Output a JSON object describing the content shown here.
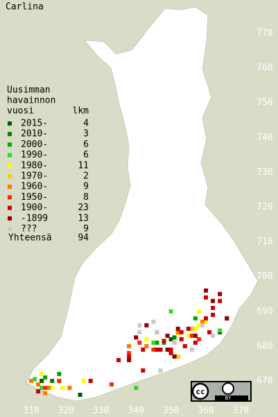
{
  "title": "Carlina",
  "legend": {
    "header": [
      "Uusimman",
      "havainnon",
      "vuosi"
    ],
    "count_header": "lkm",
    "entries": [
      {
        "label": "2015-",
        "count": 4,
        "color": "#005a00",
        "points": [
          [
            313,
            670
          ],
          [
            350,
            682
          ],
          [
            364,
            684
          ],
          [
            324,
            666
          ]
        ]
      },
      {
        "label": "2010-",
        "count": 3,
        "color": "#008000",
        "points": [
          [
            316,
            670
          ],
          [
            351,
            682.5
          ],
          [
            312,
            669
          ]
        ]
      },
      {
        "label": "2000-",
        "count": 6,
        "color": "#00a800",
        "points": [
          [
            314,
            671
          ],
          [
            348,
            681
          ],
          [
            346,
            681
          ],
          [
            319,
            668
          ],
          [
            357,
            688
          ],
          [
            318,
            672
          ]
        ]
      },
      {
        "label": "1990-",
        "count": 6,
        "color": "#22e022",
        "points": [
          [
            340,
            668
          ],
          [
            350,
            690
          ],
          [
            313,
            668
          ],
          [
            311,
            670.5
          ],
          [
            345,
            681
          ],
          [
            364,
            684.5
          ]
        ]
      },
      {
        "label": "1980-",
        "count": 11,
        "color": "#ffff00",
        "points": [
          [
            316,
            668
          ],
          [
            325,
            670
          ],
          [
            313,
            672
          ],
          [
            358,
            686
          ],
          [
            343,
            682
          ],
          [
            360,
            687
          ],
          [
            355,
            683
          ],
          [
            357,
            685
          ],
          [
            319,
            668
          ],
          [
            358,
            690
          ],
          [
            352,
            683.5
          ]
        ]
      },
      {
        "label": "1970-",
        "count": 2,
        "color": "#ffc800",
        "points": [
          [
            356,
            685
          ],
          [
            352,
            677
          ]
        ]
      },
      {
        "label": "1960-",
        "count": 9,
        "color": "#ff7800",
        "points": [
          [
            312,
            669
          ],
          [
            315,
            668
          ],
          [
            314,
            666.5
          ],
          [
            352,
            684
          ],
          [
            359,
            687
          ],
          [
            343,
            680
          ],
          [
            310,
            670
          ],
          [
            338,
            680
          ],
          [
            321,
            668
          ]
        ]
      },
      {
        "label": "1950-",
        "count": 8,
        "color": "#ff2a00",
        "points": [
          [
            345,
            679
          ],
          [
            333,
            669
          ],
          [
            338,
            678
          ],
          [
            341,
            681
          ],
          [
            356,
            683
          ],
          [
            314,
            668
          ],
          [
            358,
            682
          ],
          [
            318,
            670
          ]
        ]
      },
      {
        "label": "1900-",
        "count": 23,
        "color": "#cc0000",
        "points": [
          [
            346,
            679
          ],
          [
            362,
            689
          ],
          [
            364,
            693
          ],
          [
            353,
            684
          ],
          [
            362,
            691
          ],
          [
            350,
            679
          ],
          [
            357,
            681
          ],
          [
            348,
            681.5
          ],
          [
            361,
            684
          ],
          [
            354,
            680
          ],
          [
            347,
            679
          ],
          [
            342,
            679
          ],
          [
            338,
            677
          ],
          [
            335,
            676
          ],
          [
            350,
            678
          ],
          [
            353,
            682
          ],
          [
            366,
            688
          ],
          [
            312,
            667
          ],
          [
            327,
            670
          ],
          [
            360,
            688
          ],
          [
            355,
            685
          ],
          [
            360,
            694
          ],
          [
            342,
            673
          ]
        ]
      },
      {
        "label": "-1899",
        "count": 13,
        "color": "#960000",
        "points": [
          [
            360,
            696
          ],
          [
            362,
            693
          ],
          [
            364,
            695
          ],
          [
            357,
            683
          ],
          [
            352,
            685
          ],
          [
            346,
            684
          ],
          [
            349,
            679
          ],
          [
            340,
            682.5
          ],
          [
            366,
            688
          ],
          [
            351,
            677
          ],
          [
            338,
            676
          ],
          [
            349,
            683
          ],
          [
            343,
            686
          ]
        ]
      },
      {
        "label": " ???",
        "count": 9,
        "color": "#c8c8c8",
        "points": [
          [
            341,
            686
          ],
          [
            345,
            687
          ],
          [
            347,
            673
          ],
          [
            362,
            683
          ],
          [
            351,
            681
          ],
          [
            346,
            684
          ],
          [
            359,
            686
          ],
          [
            356,
            679
          ],
          [
            341,
            684
          ]
        ]
      }
    ],
    "total_label": "Yhteensä",
    "total": 94
  },
  "xlim": [
    301,
    380
  ],
  "ylim": [
    660,
    780
  ],
  "xticks": [
    310,
    320,
    330,
    340,
    350,
    360,
    370
  ],
  "yticks": [
    670,
    680,
    690,
    700,
    710,
    720,
    730,
    740,
    750,
    760,
    770
  ],
  "license": {
    "cc": "cc",
    "by": "BY"
  }
}
